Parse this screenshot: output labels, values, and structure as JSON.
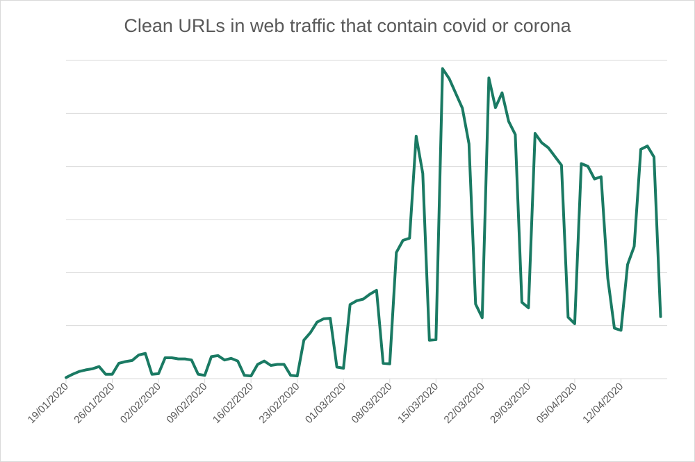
{
  "chart_data": {
    "type": "line",
    "title": "Clean URLs in web traffic that contain covid or corona",
    "xlabel": "",
    "ylabel": "",
    "y_axis_labels_shown": false,
    "ylim": [
      0,
      5.8
    ],
    "grid": true,
    "legend": "none",
    "line_color": "#1a7a63",
    "x_tick_labels": [
      "19/01/2020",
      "26/01/2020",
      "02/02/2020",
      "09/02/2020",
      "16/02/2020",
      "23/02/2020",
      "01/03/2020",
      "08/03/2020",
      "15/03/2020",
      "22/03/2020",
      "29/03/2020",
      "05/04/2020",
      "12/04/2020"
    ],
    "x_start_date": "19/01/2020",
    "series": [
      {
        "values": [
          0.02,
          0.08,
          0.13,
          0.16,
          0.18,
          0.22,
          0.08,
          0.08,
          0.28,
          0.31,
          0.33,
          0.43,
          0.46,
          0.08,
          0.09,
          0.38,
          0.38,
          0.36,
          0.36,
          0.34,
          0.08,
          0.06,
          0.4,
          0.42,
          0.34,
          0.37,
          0.32,
          0.06,
          0.05,
          0.26,
          0.32,
          0.24,
          0.26,
          0.26,
          0.06,
          0.05,
          0.7,
          0.84,
          1.03,
          1.09,
          1.1,
          0.21,
          0.19,
          1.35,
          1.42,
          1.45,
          1.54,
          1.61,
          0.28,
          0.27,
          2.3,
          2.52,
          2.56,
          4.42,
          3.74,
          0.7,
          0.71,
          5.65,
          5.47,
          5.2,
          4.93,
          4.28,
          1.36,
          1.11,
          5.48,
          4.94,
          5.21,
          4.69,
          4.45,
          1.39,
          1.29,
          4.47,
          4.3,
          4.21,
          4.05,
          3.89,
          1.12,
          1.0,
          3.92,
          3.87,
          3.64,
          3.68,
          1.83,
          0.92,
          0.88,
          2.08,
          2.41,
          4.18,
          4.24,
          4.04,
          1.13
        ]
      }
    ]
  }
}
